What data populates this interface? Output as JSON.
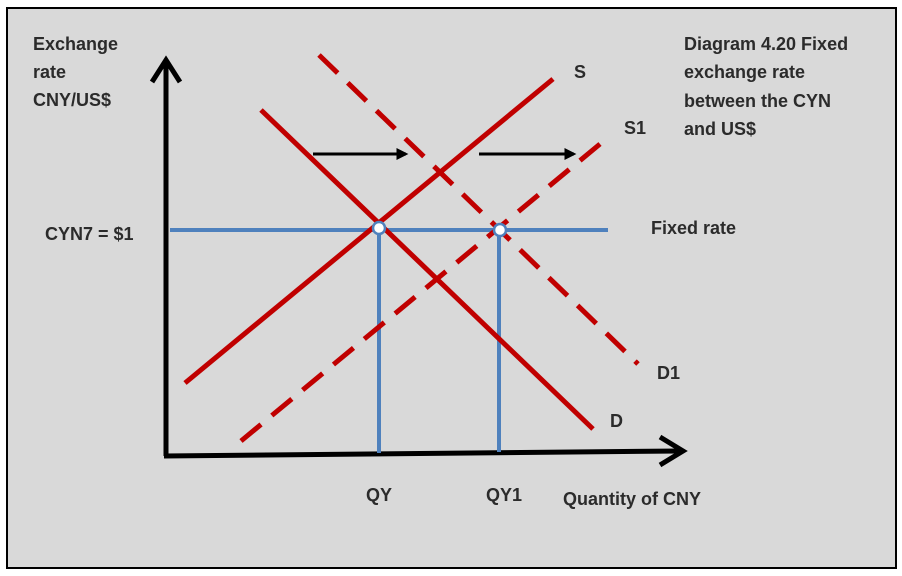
{
  "title_lines": [
    "Diagram 4.20 Fixed",
    "exchange rate",
    "between the CYN",
    "and US$"
  ],
  "y_axis_label_lines": [
    "Exchange",
    "rate",
    "CNY/US$"
  ],
  "x_axis_label": "Quantity of CNY",
  "price_label": "CYN7 = $1",
  "fixed_rate_label": "Fixed rate",
  "curves": {
    "supply": "S",
    "supply_shifted": "S1",
    "demand": "D",
    "demand_shifted": "D1"
  },
  "quantities": {
    "original": "QY",
    "new": "QY1"
  },
  "colors": {
    "background": "#d9d9d9",
    "curve": "#c00000",
    "guide": "#4f81bd",
    "axis": "#000000",
    "text": "#2b2b2b"
  }
}
